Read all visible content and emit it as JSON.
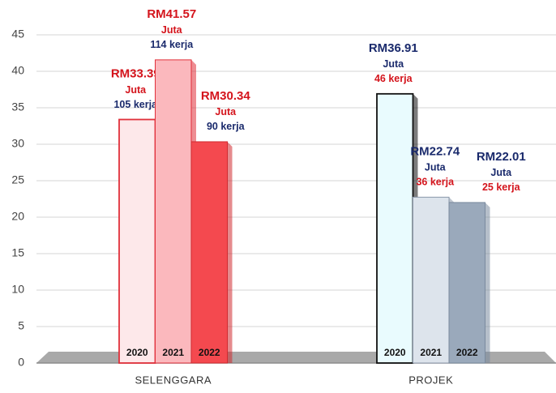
{
  "chart_data": {
    "type": "bar",
    "categories": [
      "SELENGGARA",
      "PROJEK"
    ],
    "series": [
      {
        "name": "2020",
        "colors": [
          "#fde8ea",
          "#e9fbfe"
        ],
        "edge_colors": [
          "#e0303a",
          "#111111"
        ],
        "values": [
          33.39,
          36.91
        ],
        "value_labels": [
          "RM33.39",
          "RM36.91"
        ],
        "notes": [
          [
            "Juta",
            "105 kerja"
          ],
          [
            "Juta",
            "46 kerja"
          ]
        ]
      },
      {
        "name": "2021",
        "colors": [
          "#fbb8bd",
          "#dde4ec"
        ],
        "edge_colors": [
          "#e0303a",
          "#8a98aa"
        ],
        "values": [
          41.57,
          22.74
        ],
        "value_labels": [
          "RM41.57",
          "RM22.74"
        ],
        "notes": [
          [
            "Juta",
            "114 kerja"
          ],
          [
            "Juta",
            "36 kerja"
          ]
        ]
      },
      {
        "name": "2022",
        "colors": [
          "#f4494f",
          "#9aa9bb"
        ],
        "edge_colors": [
          "#d02a30",
          "#7a8a9e"
        ],
        "values": [
          30.34,
          22.01
        ],
        "value_labels": [
          "RM30.34",
          "RM22.01"
        ],
        "notes": [
          [
            "Juta",
            "90 kerja"
          ],
          [
            "Juta",
            "25 kerja"
          ]
        ]
      }
    ],
    "ylim": [
      0,
      45
    ],
    "yticks": [
      0,
      5,
      10,
      15,
      20,
      25,
      30,
      35,
      40,
      45
    ],
    "grid": true
  }
}
